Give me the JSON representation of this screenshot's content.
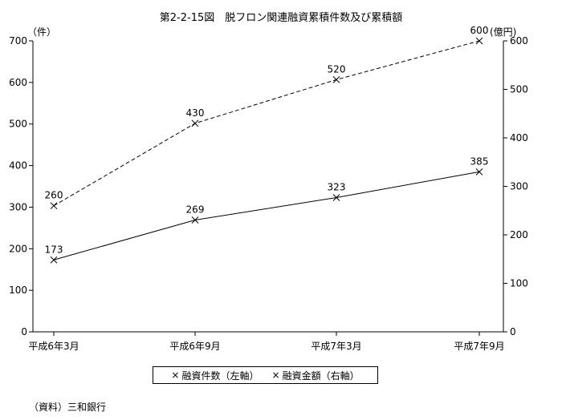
{
  "chart_data": {
    "type": "line",
    "title": "第2-2-15図　脱フロン関連融資累積件数及び累積額",
    "categories": [
      "平成6年3月",
      "平成6年9月",
      "平成7年3月",
      "平成7年9月"
    ],
    "y_left": {
      "unit": "（件）",
      "ylim": [
        0,
        700
      ],
      "ticks": [
        "0",
        "100",
        "200",
        "300",
        "400",
        "500",
        "600",
        "700"
      ]
    },
    "y_right": {
      "unit": "(億円)",
      "ylim": [
        0,
        600
      ],
      "ticks": [
        "0",
        "100",
        "200",
        "300",
        "400",
        "500",
        "600"
      ]
    },
    "series": [
      {
        "name": "融資件数（左軸）",
        "axis": "left",
        "style": "solid",
        "marker": "x",
        "values": [
          173,
          269,
          323,
          385
        ]
      },
      {
        "name": "融資金額（右軸）",
        "axis": "right",
        "style": "dashed",
        "marker": "x",
        "values": [
          260,
          430,
          520,
          600
        ]
      }
    ],
    "legend_position": "bottom",
    "grid": false
  },
  "source_note": "（資料）三和銀行",
  "legend_marker": "×"
}
